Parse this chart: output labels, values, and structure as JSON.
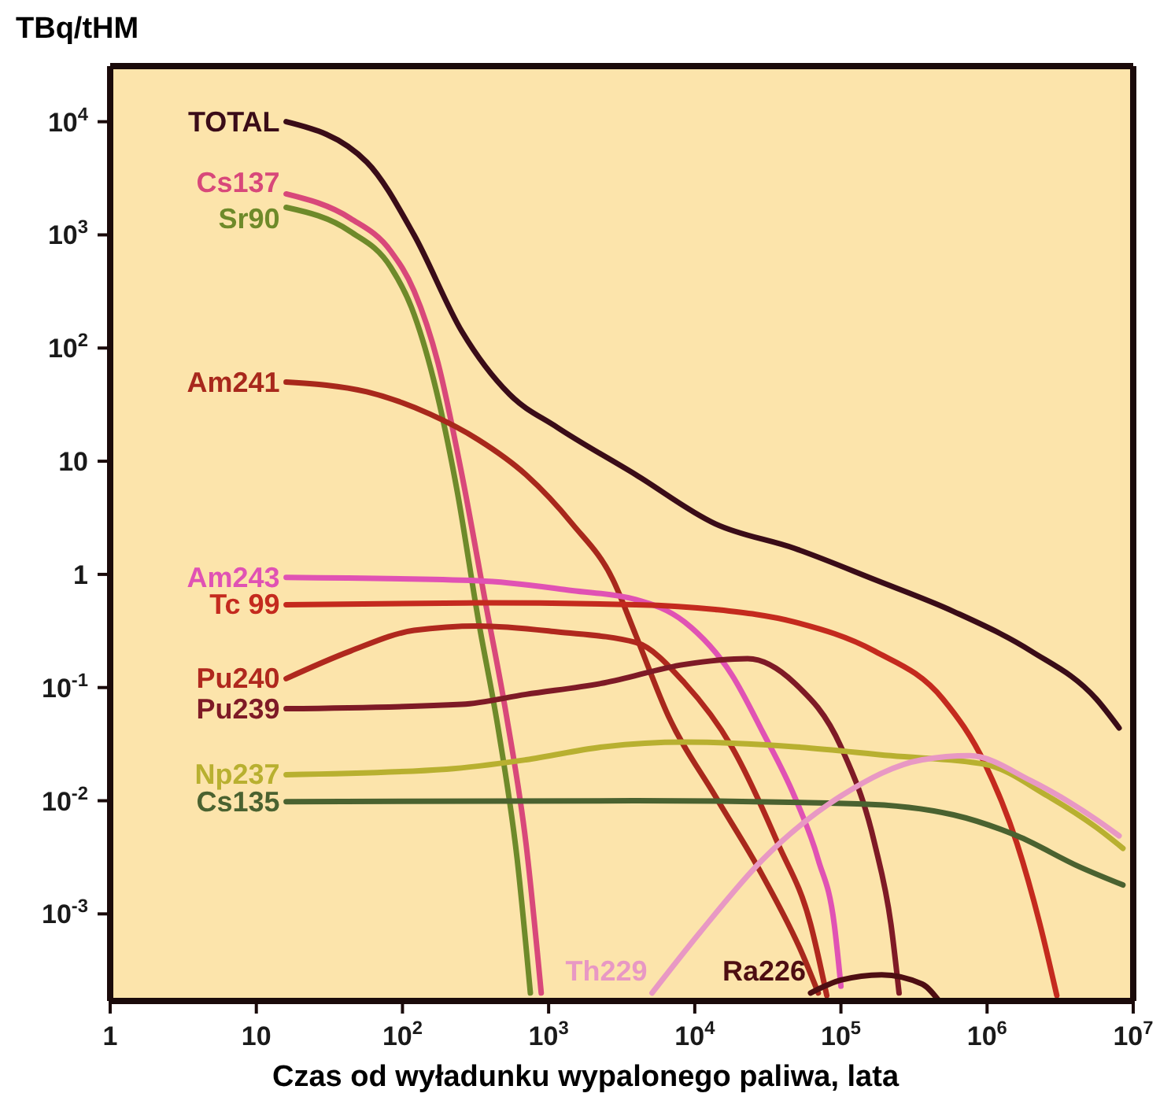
{
  "chart_data": {
    "type": "line",
    "ylabel": "TBq/tHM",
    "xlabel": "Czas od wyładunku wypalonego paliwa, lata",
    "log": "xy",
    "grid": false,
    "legend": false,
    "marker": "none",
    "line_style": "solid",
    "xlim": [
      1,
      10000000
    ],
    "ylim": [
      0.00017,
      31000
    ],
    "xticks": [
      1,
      10,
      {
        "value": 100,
        "label": "10$^{2}$"
      },
      {
        "value": 1000,
        "label": "10$^{3}$"
      },
      {
        "value": 10000,
        "label": "10$^{4}$"
      },
      {
        "value": 100000,
        "label": "10$^{5}$"
      },
      {
        "value": 1000000,
        "label": "10$^{6}$"
      },
      {
        "value": 10000000,
        "label": "10$^{7}$"
      }
    ],
    "yticks": [
      {
        "value": 0.001,
        "label": "10$^{-3}$"
      },
      {
        "value": 0.01,
        "label": "10$^{-2}$"
      },
      {
        "value": 0.1,
        "label": "10$^{-1}$"
      },
      1,
      10,
      {
        "value": 100,
        "label": "10$^{2}$"
      },
      {
        "value": 1000,
        "label": "10$^{3}$"
      },
      {
        "value": 10000,
        "label": "10$^{4}$"
      }
    ],
    "series": [
      {
        "name": "TOTAL",
        "color": "#3a0c18",
        "x": [
          16,
          57,
          120,
          255,
          540,
          1140,
          3950,
          13800,
          48000,
          170000,
          590000,
          2000000,
          5600000,
          8000000
        ],
        "values": [
          10000,
          4400,
          1000,
          140,
          39,
          20,
          7.6,
          2.8,
          1.7,
          0.9,
          0.47,
          0.21,
          0.079,
          0.044
        ]
      },
      {
        "name": "Cs137",
        "color": "#d8487a",
        "x": [
          16,
          44,
          83,
          120,
          175,
          255,
          370,
          515,
          700,
          890
        ],
        "values": [
          2300,
          1400,
          720,
          320,
          74,
          7.6,
          0.56,
          0.056,
          0.0042,
          0.0002
        ]
      },
      {
        "name": "Sr90",
        "color": "#6e8a2a",
        "x": [
          16,
          44,
          83,
          115,
          163,
          237,
          330,
          455,
          610,
          750
        ],
        "values": [
          1750,
          1070,
          520,
          230,
          53,
          5.4,
          0.4,
          0.041,
          0.003,
          0.0002
        ]
      },
      {
        "name": "Am241",
        "color": "#a8281c",
        "x": [
          16,
          57,
          155,
          330,
          700,
          1450,
          2750,
          3950,
          6600,
          13800,
          29000,
          55000,
          70000
        ],
        "values": [
          50,
          41,
          26,
          15.5,
          7.6,
          2.8,
          0.9,
          0.29,
          0.056,
          0.011,
          0.0022,
          0.00043,
          0.0002
        ]
      },
      {
        "name": "Am243",
        "color": "#e052b4",
        "x": [
          16,
          330,
          1450,
          3950,
          8500,
          17900,
          29000,
          48000,
          70000,
          90000,
          100000
        ],
        "values": [
          0.94,
          0.88,
          0.72,
          0.6,
          0.38,
          0.13,
          0.041,
          0.011,
          0.003,
          0.00081,
          0.00023
        ]
      },
      {
        "name": "Tc 99",
        "color": "#c42a1e",
        "x": [
          16,
          330,
          3950,
          13800,
          48000,
          170000,
          500000,
          970000,
          1600000,
          2300000,
          3000000
        ],
        "values": [
          0.54,
          0.56,
          0.54,
          0.49,
          0.38,
          0.21,
          0.079,
          0.021,
          0.0042,
          0.00081,
          0.00019
        ]
      },
      {
        "name": "Pu240",
        "color": "#b0281e",
        "x": [
          16,
          44,
          120,
          330,
          1150,
          3950,
          8500,
          17900,
          37000,
          62000,
          80000
        ],
        "values": [
          0.12,
          0.21,
          0.32,
          0.35,
          0.31,
          0.25,
          0.11,
          0.03,
          0.0042,
          0.00081,
          0.00019
        ]
      },
      {
        "name": "Pu239",
        "color": "#7e1a26",
        "x": [
          16,
          255,
          700,
          2400,
          8500,
          23000,
          48000,
          100000,
          170000,
          220000,
          250000
        ],
        "values": [
          0.065,
          0.071,
          0.087,
          0.11,
          0.16,
          0.18,
          0.11,
          0.03,
          0.0042,
          0.00081,
          0.0002
        ]
      },
      {
        "name": "Np237",
        "color": "#b8b030",
        "x": [
          16,
          200,
          700,
          2400,
          8500,
          48000,
          220000,
          970000,
          2600000,
          5600000,
          8500000
        ],
        "values": [
          0.017,
          0.019,
          0.023,
          0.03,
          0.033,
          0.03,
          0.025,
          0.021,
          0.011,
          0.0058,
          0.0038
        ]
      },
      {
        "name": "Cs135",
        "color": "#4a6230",
        "x": [
          16,
          3950,
          130000,
          590000,
          1600000,
          4300000,
          8500000
        ],
        "values": [
          0.0098,
          0.01,
          0.0094,
          0.0075,
          0.0049,
          0.0026,
          0.0018
        ]
      },
      {
        "name": "Th229",
        "color": "#e898c4",
        "x": [
          5100,
          10900,
          29000,
          100000,
          360000,
          760000,
          2000000,
          5600000,
          8000000
        ],
        "values": [
          0.0002,
          0.00069,
          0.003,
          0.011,
          0.023,
          0.025,
          0.015,
          0.0068,
          0.0049
        ]
      },
      {
        "name": "Ra226",
        "color": "#4e0e12",
        "x": [
          62000,
          100000,
          190000,
          360000,
          470000
        ],
        "values": [
          0.0002,
          0.00026,
          0.00029,
          0.00024,
          0.00017
        ]
      }
    ]
  }
}
